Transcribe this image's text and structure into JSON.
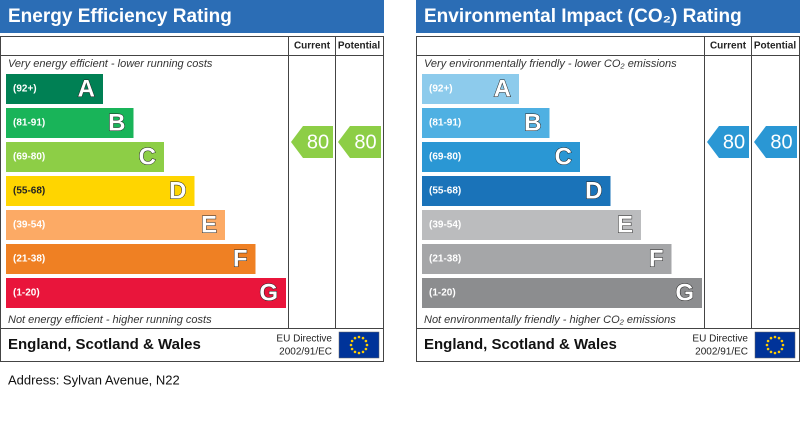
{
  "panels": [
    {
      "title": "Energy Efficiency Rating",
      "col_current": "Current",
      "col_potential": "Potential",
      "top_note": "Very energy efficient - lower running costs",
      "bottom_note": "Not energy efficient - higher running costs",
      "bands": [
        {
          "range": "(92+)",
          "letter": "A",
          "color": "#008054"
        },
        {
          "range": "(81-91)",
          "letter": "B",
          "color": "#19b459"
        },
        {
          "range": "(69-80)",
          "letter": "C",
          "color": "#8dce46"
        },
        {
          "range": "(55-68)",
          "letter": "D",
          "color": "#ffd500"
        },
        {
          "range": "(39-54)",
          "letter": "E",
          "color": "#fcaa65"
        },
        {
          "range": "(21-38)",
          "letter": "F",
          "color": "#ef8023"
        },
        {
          "range": "(1-20)",
          "letter": "G",
          "color": "#e9153b"
        }
      ],
      "current": 80,
      "potential": 80,
      "footer": "England, Scotland & Wales",
      "directive_1": "EU Directive",
      "directive_2": "2002/91/EC"
    },
    {
      "title": "Environmental Impact (CO₂) Rating",
      "col_current": "Current",
      "col_potential": "Potential",
      "top_note": "Very environmentally friendly - lower CO₂ emissions",
      "bottom_note": "Not environmentally friendly - higher CO₂ emissions",
      "bands": [
        {
          "range": "(92+)",
          "letter": "A",
          "color": "#8dcbec"
        },
        {
          "range": "(81-91)",
          "letter": "B",
          "color": "#4fb0e2"
        },
        {
          "range": "(69-80)",
          "letter": "C",
          "color": "#2a97d4"
        },
        {
          "range": "(55-68)",
          "letter": "D",
          "color": "#1a73b9"
        },
        {
          "range": "(39-54)",
          "letter": "E",
          "color": "#bbbcbe"
        },
        {
          "range": "(21-38)",
          "letter": "F",
          "color": "#a5a6a8"
        },
        {
          "range": "(1-20)",
          "letter": "G",
          "color": "#8c8d8f"
        }
      ],
      "current": 80,
      "potential": 80,
      "footer": "England, Scotland & Wales",
      "directive_1": "EU Directive",
      "directive_2": "2002/91/EC"
    }
  ],
  "address": "Address: Sylvan Avenue, N22"
}
